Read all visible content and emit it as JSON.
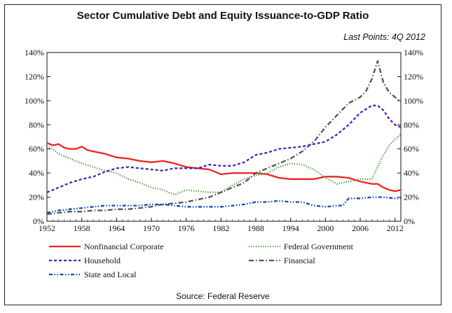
{
  "chart_data": {
    "type": "line",
    "title": "Sector Cumulative Debt and Equity Issuance-to-GDP Ratio",
    "subtitle": "Last Points: 4Q 2012",
    "source": "Source: Federal Reserve",
    "xlabel": "",
    "ylabel": "",
    "xlim": [
      1952,
      2013
    ],
    "ylim": [
      0,
      140
    ],
    "x_ticks": [
      1952,
      1958,
      1964,
      1970,
      1976,
      1982,
      1988,
      1994,
      2000,
      2006,
      2012
    ],
    "y_ticks": [
      0,
      20,
      40,
      60,
      80,
      100,
      120,
      140
    ],
    "y_tick_labels": [
      "0%",
      "20%",
      "40%",
      "60%",
      "80%",
      "100%",
      "120%",
      "140%"
    ],
    "legend_position": "bottom",
    "series": [
      {
        "name": "Nonfinancial Corporate",
        "color": "#ee2222",
        "dash": "solid",
        "x": [
          1952,
          1953,
          1954,
          1955,
          1956,
          1957,
          1958,
          1959,
          1960,
          1962,
          1964,
          1966,
          1968,
          1970,
          1972,
          1974,
          1976,
          1978,
          1980,
          1982,
          1984,
          1986,
          1988,
          1990,
          1992,
          1994,
          1996,
          1998,
          2000,
          2002,
          2004,
          2006,
          2008,
          2009,
          2010,
          2011,
          2012,
          2013
        ],
        "values": [
          65,
          63,
          64,
          61,
          60,
          60,
          62,
          59,
          58,
          56,
          53,
          52,
          50,
          49,
          50,
          48,
          45,
          44,
          43,
          39,
          40,
          40,
          40,
          39,
          36,
          35,
          35,
          35,
          37,
          37,
          36,
          33,
          31,
          31,
          28,
          26,
          25,
          26
        ]
      },
      {
        "name": "Federal Government",
        "color": "#3a9a2a",
        "dash": "dotted",
        "x": [
          1952,
          1953,
          1954,
          1956,
          1958,
          1960,
          1962,
          1964,
          1966,
          1968,
          1970,
          1972,
          1974,
          1976,
          1978,
          1980,
          1982,
          1984,
          1986,
          1988,
          1990,
          1992,
          1994,
          1996,
          1998,
          2000,
          2002,
          2004,
          2006,
          2008,
          2009,
          2010,
          2011,
          2012,
          2013
        ],
        "values": [
          62,
          60,
          56,
          52,
          48,
          45,
          42,
          40,
          35,
          32,
          28,
          26,
          22,
          26,
          25,
          24,
          24,
          30,
          35,
          38,
          40,
          45,
          48,
          47,
          43,
          36,
          31,
          33,
          35,
          35,
          45,
          55,
          63,
          68,
          72
        ]
      },
      {
        "name": "Household",
        "color": "#4a22bb",
        "dash": "dashed",
        "x": [
          1952,
          1954,
          1956,
          1958,
          1960,
          1962,
          1964,
          1966,
          1968,
          1970,
          1972,
          1974,
          1976,
          1978,
          1980,
          1982,
          1984,
          1986,
          1988,
          1990,
          1992,
          1994,
          1996,
          1998,
          2000,
          2002,
          2004,
          2006,
          2008,
          2009,
          2010,
          2011,
          2012,
          2013
        ],
        "values": [
          24,
          28,
          32,
          35,
          37,
          41,
          44,
          45,
          44,
          43,
          42,
          44,
          44,
          44,
          47,
          46,
          46,
          49,
          55,
          57,
          60,
          61,
          62,
          64,
          66,
          72,
          80,
          90,
          96,
          96,
          92,
          85,
          80,
          78
        ]
      },
      {
        "name": "Financial",
        "color": "#555555",
        "dash": "dashdot",
        "x": [
          1952,
          1954,
          1956,
          1958,
          1960,
          1962,
          1964,
          1966,
          1968,
          1970,
          1972,
          1974,
          1976,
          1978,
          1980,
          1982,
          1984,
          1986,
          1988,
          1990,
          1992,
          1994,
          1996,
          1998,
          2000,
          2002,
          2004,
          2006,
          2007,
          2008,
          2009,
          2010,
          2011,
          2012,
          2013
        ],
        "values": [
          6,
          7,
          8,
          8,
          9,
          9,
          10,
          10,
          11,
          12,
          14,
          15,
          16,
          18,
          20,
          24,
          28,
          32,
          40,
          44,
          48,
          52,
          58,
          66,
          78,
          88,
          98,
          103,
          108,
          118,
          133,
          115,
          107,
          103,
          99
        ]
      },
      {
        "name": "State and Local",
        "color": "#1144cc",
        "dash": "dashdotdot",
        "x": [
          1952,
          1954,
          1956,
          1958,
          1960,
          1962,
          1964,
          1966,
          1968,
          1970,
          1972,
          1974,
          1976,
          1978,
          1980,
          1982,
          1984,
          1986,
          1988,
          1990,
          1992,
          1994,
          1996,
          1998,
          2000,
          2002,
          2003,
          2004,
          2006,
          2008,
          2010,
          2012,
          2013
        ],
        "values": [
          7,
          9,
          10,
          11,
          12,
          13,
          13,
          13,
          13,
          14,
          14,
          13,
          12,
          12,
          12,
          12,
          13,
          14,
          16,
          16,
          17,
          16,
          16,
          13,
          12,
          13,
          13,
          19,
          19,
          20,
          20,
          19,
          19
        ]
      }
    ]
  }
}
